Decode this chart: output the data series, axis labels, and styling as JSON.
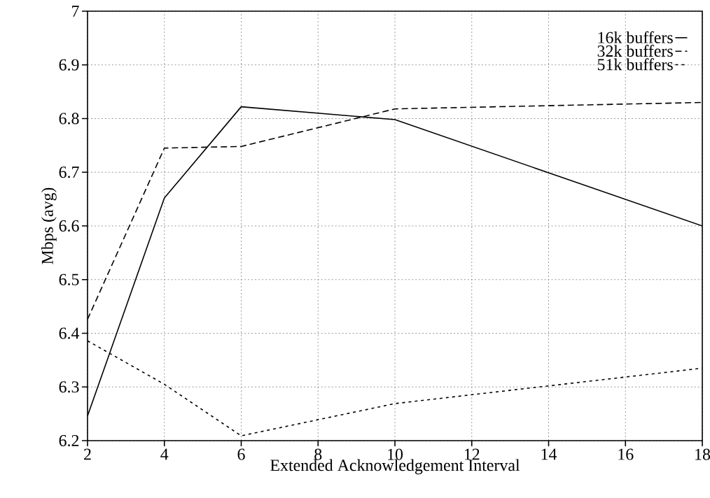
{
  "chart_data": {
    "type": "line",
    "xlabel": "Extended Acknowledgement Interval",
    "ylabel": "Mbps (avg)",
    "xlim": [
      2,
      18
    ],
    "ylim": [
      6.2,
      7
    ],
    "xticks": [
      2,
      4,
      6,
      8,
      10,
      12,
      14,
      16,
      18
    ],
    "yticks": [
      6.2,
      6.3,
      6.4,
      6.5,
      6.6,
      6.7,
      6.8,
      6.9,
      7
    ],
    "grid": true,
    "legend": "top right",
    "series": [
      {
        "name": "16k buffers",
        "color": "#000000",
        "line_style": "solid",
        "x": [
          2,
          4,
          6,
          10,
          18
        ],
        "values": [
          6.246,
          6.652,
          6.822,
          6.798,
          6.6
        ]
      },
      {
        "name": "32k buffers",
        "color": "#000000",
        "line_style": "dashed",
        "x": [
          2,
          4,
          6,
          10,
          18
        ],
        "values": [
          6.426,
          6.745,
          6.748,
          6.818,
          6.83
        ]
      },
      {
        "name": "51k buffers",
        "color": "#000000",
        "line_style": "dotted",
        "x": [
          2,
          4,
          6,
          10,
          18
        ],
        "values": [
          6.386,
          6.305,
          6.209,
          6.269,
          6.335
        ]
      }
    ]
  }
}
